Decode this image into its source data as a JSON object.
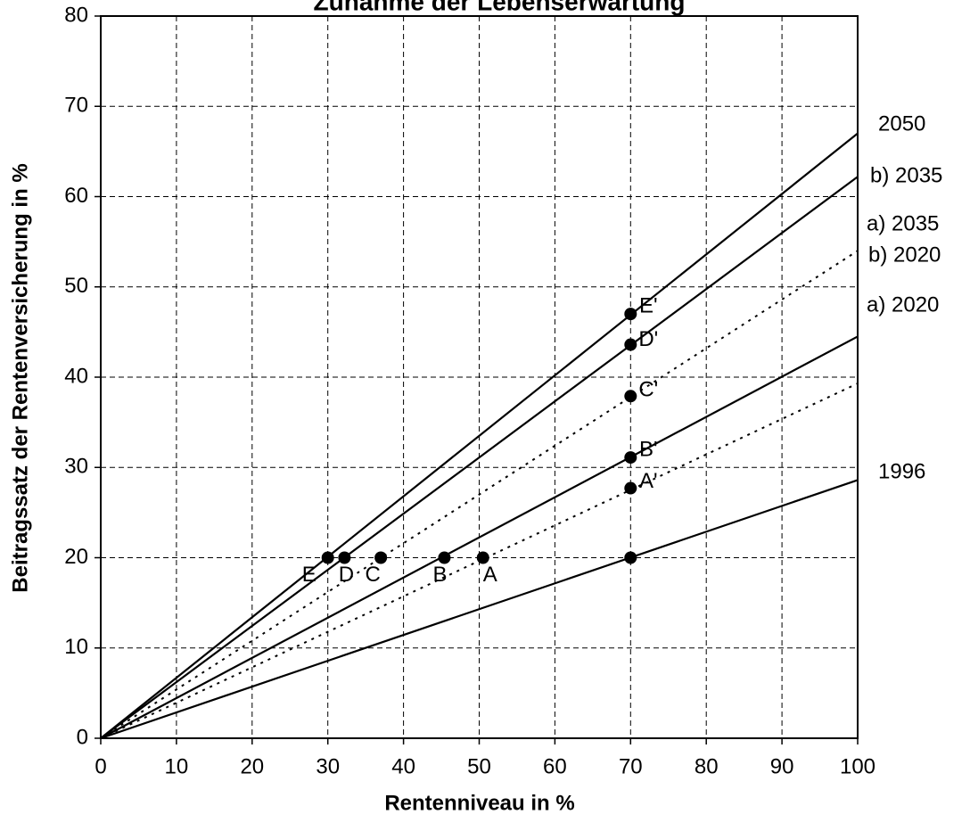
{
  "chart_data": {
    "type": "line",
    "title": "Zunahme der Lebenserwartung",
    "x_label": "Rentenniveau in %",
    "y_label": "Beitragssatz der Rentenversicherung in %",
    "x": [
      0,
      100
    ],
    "series": [
      {
        "name": "2050",
        "color": "#000000",
        "dashed": false,
        "values": [
          0,
          67
        ]
      },
      {
        "name": "b) 2035",
        "color": "#000000",
        "dashed": false,
        "values": [
          0,
          62.2
        ]
      },
      {
        "name": "a) 2035",
        "color": "#000000",
        "dashed": true,
        "values": [
          0,
          54
        ]
      },
      {
        "name": "b) 2020",
        "color": "#000000",
        "dashed": false,
        "values": [
          0,
          44.5
        ]
      },
      {
        "name": "a) 2020",
        "color": "#000000",
        "dashed": true,
        "values": [
          0,
          39.3
        ]
      },
      {
        "name": "1996",
        "color": "#000000",
        "dashed": false,
        "values": [
          0,
          28.6
        ]
      }
    ],
    "points": [
      {
        "label": "E",
        "x": 30,
        "y": 20
      },
      {
        "label": "D",
        "x": 32.2,
        "y": 20
      },
      {
        "label": "C",
        "x": 37,
        "y": 20
      },
      {
        "label": "B",
        "x": 45.4,
        "y": 20
      },
      {
        "label": "A",
        "x": 50.5,
        "y": 20
      },
      {
        "label": "E'",
        "x": 70,
        "y": 47
      },
      {
        "label": "D'",
        "x": 70,
        "y": 43.6
      },
      {
        "label": "C'",
        "x": 70,
        "y": 37.9
      },
      {
        "label": "B'",
        "x": 70,
        "y": 31.1
      },
      {
        "label": "A'",
        "x": 70,
        "y": 27.7
      },
      {
        "label": null,
        "x": 70,
        "y": 20
      }
    ],
    "point_color": "#000000",
    "xlim": [
      0,
      100
    ],
    "xticks": [
      0,
      10,
      20,
      30,
      40,
      50,
      60,
      70,
      80,
      90,
      100
    ],
    "ylim": [
      0,
      80
    ],
    "yticks": [
      0,
      10,
      20,
      30,
      40,
      50,
      60,
      70,
      80
    ],
    "grid": true
  }
}
